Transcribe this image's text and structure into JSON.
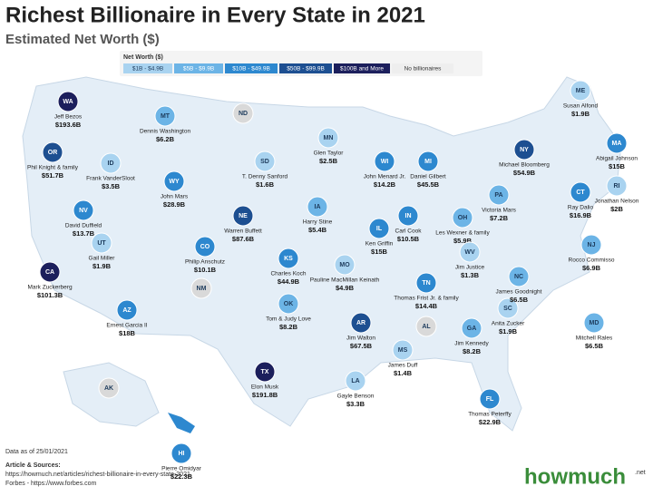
{
  "header": {
    "title": "Richest Billionaire in Every State in 2021",
    "subtitle": "Estimated Net Worth ($)"
  },
  "legend": {
    "title": "Net Worth ($)",
    "items": [
      {
        "label": "$1B - $4.9B",
        "color": "#a9d3f0",
        "text_color": "#1d3b5c"
      },
      {
        "label": "$5B - $9.9B",
        "color": "#6cb4e6",
        "text_color": "#ffffff"
      },
      {
        "label": "$10B - $49.9B",
        "color": "#2d88cf",
        "text_color": "#ffffff"
      },
      {
        "label": "$50B - $99.9B",
        "color": "#1d4f91",
        "text_color": "#ffffff"
      },
      {
        "label": "$100B and More",
        "color": "#1c1f5c",
        "text_color": "#ffffff"
      },
      {
        "label": "No billionaires",
        "color": "#eeeeee",
        "text_color": "#333333"
      }
    ]
  },
  "states": [
    {
      "state": "WA",
      "name": "Jeff Bezos",
      "worth": "$193.6B",
      "color": "#1c1f5c"
    },
    {
      "state": "OR",
      "name": "Phil Knight & family",
      "worth": "$51.7B",
      "color": "#1d4f91"
    },
    {
      "state": "CA",
      "name": "Mark Zuckerberg",
      "worth": "$101.3B",
      "color": "#1c1f5c"
    },
    {
      "state": "NV",
      "name": "David Duffield",
      "worth": "$13.7B",
      "color": "#2d88cf"
    },
    {
      "state": "ID",
      "name": "Frank VanderSloot",
      "worth": "$3.5B",
      "color": "#a9d3f0"
    },
    {
      "state": "MT",
      "name": "Dennis Washington",
      "worth": "$6.2B",
      "color": "#6cb4e6"
    },
    {
      "state": "WY",
      "name": "John Mars",
      "worth": "$28.9B",
      "color": "#2d88cf"
    },
    {
      "state": "UT",
      "name": "Gail Miller",
      "worth": "$1.9B",
      "color": "#a9d3f0"
    },
    {
      "state": "AZ",
      "name": "Ernest Garcia II",
      "worth": "$18B",
      "color": "#2d88cf"
    },
    {
      "state": "CO",
      "name": "Philip Anschutz",
      "worth": "$10.1B",
      "color": "#2d88cf"
    },
    {
      "state": "NM",
      "color": "#d9d9d9"
    },
    {
      "state": "ND",
      "color": "#d9d9d9"
    },
    {
      "state": "SD",
      "name": "T. Denny Sanford",
      "worth": "$1.6B",
      "color": "#a9d3f0"
    },
    {
      "state": "NE",
      "name": "Warren Buffett",
      "worth": "$87.6B",
      "color": "#1d4f91"
    },
    {
      "state": "KS",
      "name": "Charles Koch",
      "worth": "$44.9B",
      "color": "#2d88cf"
    },
    {
      "state": "OK",
      "name": "Tom & Judy Love",
      "worth": "$8.2B",
      "color": "#6cb4e6"
    },
    {
      "state": "TX",
      "name": "Elon Musk",
      "worth": "$191.8B",
      "color": "#1c1f5c"
    },
    {
      "state": "MN",
      "name": "Glen Taylor",
      "worth": "$2.5B",
      "color": "#a9d3f0"
    },
    {
      "state": "IA",
      "name": "Harry Stine",
      "worth": "$5.4B",
      "color": "#6cb4e6"
    },
    {
      "state": "MO",
      "name": "Pauline MacMillan Keinath",
      "worth": "$4.9B",
      "color": "#a9d3f0"
    },
    {
      "state": "AR",
      "name": "Jim Walton",
      "worth": "$67.5B",
      "color": "#1d4f91"
    },
    {
      "state": "LA",
      "name": "Gayle Benson",
      "worth": "$3.3B",
      "color": "#a9d3f0"
    },
    {
      "state": "WI",
      "name": "John Menard Jr.",
      "worth": "$14.2B",
      "color": "#2d88cf"
    },
    {
      "state": "IL",
      "name": "Ken Griffin",
      "worth": "$15B",
      "color": "#2d88cf"
    },
    {
      "state": "MS",
      "name": "James Duff",
      "worth": "$1.4B",
      "color": "#a9d3f0"
    },
    {
      "state": "MI",
      "name": "Daniel Gilbert",
      "worth": "$45.5B",
      "color": "#2d88cf"
    },
    {
      "state": "IN",
      "name": "Carl Cook",
      "worth": "$10.5B",
      "color": "#2d88cf"
    },
    {
      "state": "OH",
      "name": "Les Wexner & family",
      "worth": "$5.9B",
      "color": "#6cb4e6"
    },
    {
      "state": "TN",
      "name": "Thomas Frist Jr. & family",
      "worth": "$14.4B",
      "color": "#2d88cf"
    },
    {
      "state": "AL",
      "color": "#d9d9d9"
    },
    {
      "state": "GA",
      "name": "Jim Kennedy",
      "worth": "$8.2B",
      "color": "#6cb4e6"
    },
    {
      "state": "FL",
      "name": "Thomas Peterffy",
      "worth": "$22.9B",
      "color": "#2d88cf"
    },
    {
      "state": "SC",
      "name": "Anita Zucker",
      "worth": "$1.9B",
      "color": "#a9d3f0"
    },
    {
      "state": "NC",
      "name": "James Goodnight",
      "worth": "$6.5B",
      "color": "#6cb4e6"
    },
    {
      "state": "WV",
      "name": "Jim Justice",
      "worth": "$1.3B",
      "color": "#a9d3f0"
    },
    {
      "state": "PA",
      "name": "Victoria Mars",
      "worth": "$7.2B",
      "color": "#6cb4e6"
    },
    {
      "state": "NY",
      "name": "Michael Bloomberg",
      "worth": "$54.9B",
      "color": "#1d4f91"
    },
    {
      "state": "ME",
      "name": "Susan Alfond",
      "worth": "$1.9B",
      "color": "#a9d3f0"
    },
    {
      "state": "MA",
      "name": "Abigail Johnson",
      "worth": "$15B",
      "color": "#2d88cf"
    },
    {
      "state": "CT",
      "name": "Ray Dalio",
      "worth": "$16.9B",
      "color": "#2d88cf"
    },
    {
      "state": "RI",
      "name": "Jonathan Nelson",
      "worth": "$2B",
      "color": "#a9d3f0"
    },
    {
      "state": "NJ",
      "name": "Rocco Commisso",
      "worth": "$6.9B",
      "color": "#6cb4e6"
    },
    {
      "state": "MD",
      "name": "Mitchell Rales",
      "worth": "$6.5B",
      "color": "#6cb4e6"
    },
    {
      "state": "HI",
      "name": "Pierre Omidyar",
      "worth": "$22.3B",
      "color": "#2d88cf"
    },
    {
      "state": "AK",
      "color": "#d9d9d9"
    }
  ],
  "footer": {
    "date": "Data as of 25/01/2021",
    "sources_title": "Article & Sources:",
    "source_1": "https://howmuch.net/articles/richest-billionaire-in-every-state-2021",
    "source_2": "Forbes - https://www.forbes.com",
    "logo": "howmuch",
    "logo_suffix": ".net"
  }
}
